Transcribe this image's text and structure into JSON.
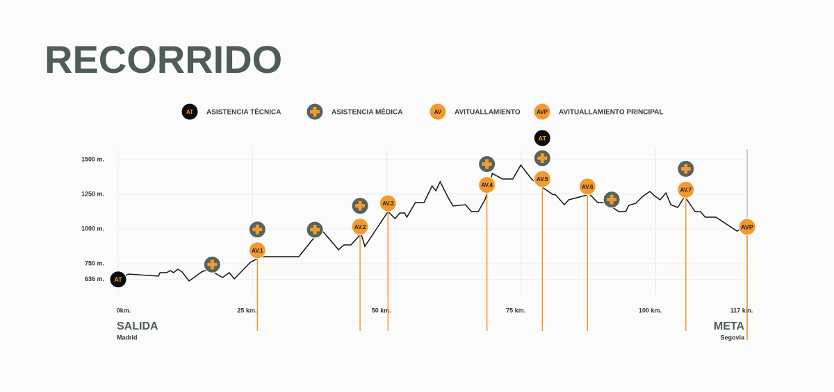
{
  "title": "RECORRIDO",
  "legend": [
    {
      "icon": "AT",
      "label": "ASISTENCIA TÉCNICA"
    },
    {
      "label": "ASISTENCIA MÉDICA"
    },
    {
      "icon": "AV",
      "label": "AVITUALLAMIENTO"
    },
    {
      "icon": "AVP",
      "label": "AVITUALLAMIENTO PRINCIPAL"
    }
  ],
  "chart_data": {
    "type": "line",
    "color": "#111111",
    "x": [
      0,
      1.9,
      7.5,
      7.8,
      9.0,
      9.7,
      10.3,
      11.1,
      11.9,
      13.2,
      15.5,
      16.8,
      19.4,
      20.7,
      21.6,
      24.6,
      26.1,
      27.1,
      33.6,
      36.2,
      37.7,
      38.8,
      41.0,
      42.0,
      43.3,
      45.2,
      45.9,
      50.2,
      51.5,
      52.4,
      53.3,
      53.7,
      55.3,
      56.9,
      58.4,
      59.1,
      59.9,
      61.4,
      62.3,
      64.6,
      65.7,
      67.0,
      68.3,
      69.6,
      71.5,
      73.4,
      74.9,
      76.9,
      78.9,
      80.8,
      81.4,
      83.0,
      83.8,
      85.3,
      87.7,
      89.2,
      90.8,
      93.1,
      94.4,
      95.0,
      96.3,
      97.6,
      98.9,
      99.9,
      100.8,
      101.9,
      102.8,
      104.1,
      105.4,
      106.0,
      107.3,
      108.3,
      109.2,
      111.2,
      115.1,
      117
    ],
    "values": [
      636,
      675,
      660,
      685,
      685,
      700,
      685,
      710,
      690,
      625,
      690,
      710,
      650,
      685,
      640,
      760,
      790,
      800,
      800,
      925,
      1000,
      950,
      850,
      885,
      885,
      965,
      875,
      1125,
      1075,
      1115,
      1115,
      1085,
      1190,
      1190,
      1310,
      1275,
      1340,
      1225,
      1165,
      1175,
      1125,
      1125,
      1215,
      1400,
      1360,
      1360,
      1460,
      1360,
      1300,
      1250,
      1245,
      1175,
      1210,
      1225,
      1250,
      1190,
      1190,
      1125,
      1125,
      1170,
      1185,
      1235,
      1270,
      1235,
      1210,
      1260,
      1175,
      1155,
      1235,
      1200,
      1125,
      1125,
      1085,
      1085,
      985,
      1015
    ],
    "xlim": [
      0,
      117
    ],
    "ylim": [
      525,
      1575
    ],
    "xticks": [
      {
        "value": 0,
        "label": "0km."
      },
      {
        "value": 25,
        "label": "25 km."
      },
      {
        "value": 50,
        "label": "50 km."
      },
      {
        "value": 75,
        "label": "75 km."
      },
      {
        "value": 100,
        "label": "100 km."
      },
      {
        "value": 117,
        "label": "117 km."
      }
    ],
    "yticks": [
      {
        "value": 636,
        "label": "636 m."
      },
      {
        "value": 750,
        "label": "750 m."
      },
      {
        "value": 1000,
        "label": "1000 m."
      },
      {
        "value": 1250,
        "label": "1250 m."
      },
      {
        "value": 1500,
        "label": "1500 m."
      }
    ],
    "start": {
      "name": "SALIDA",
      "place": "Madrid"
    },
    "end": {
      "name": "META",
      "place": "Segovia"
    },
    "aid_stations": [
      {
        "km": 25.9,
        "label": "AV.1"
      },
      {
        "km": 45.0,
        "label": "AV.2"
      },
      {
        "km": 50.2,
        "label": "AV.3"
      },
      {
        "km": 68.6,
        "label": "AV.4"
      },
      {
        "km": 78.9,
        "label": "AV.5"
      },
      {
        "km": 87.3,
        "label": "AV.6"
      },
      {
        "km": 105.6,
        "label": "AV.7"
      },
      {
        "km": 117,
        "label": "AVP"
      }
    ],
    "medical_km": [
      17.5,
      25.9,
      36.6,
      45.0,
      68.6,
      78.9,
      91.8,
      105.6
    ],
    "technical": [
      {
        "km": 0,
        "label": "AT"
      },
      {
        "km": 78.9,
        "label": "AT"
      }
    ]
  }
}
